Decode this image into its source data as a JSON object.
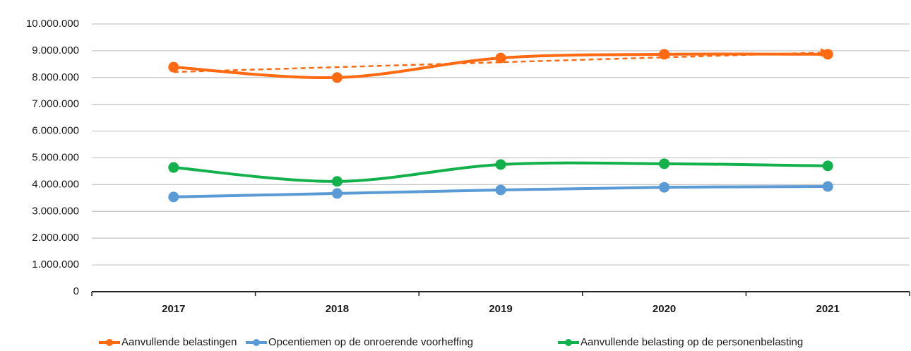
{
  "chart_data": {
    "type": "line",
    "categories": [
      "2017",
      "2018",
      "2019",
      "2020",
      "2021"
    ],
    "series": [
      {
        "name": "Aanvullende belastingen",
        "color": "#ff6a13",
        "values": [
          8390000,
          8000000,
          8730000,
          8870000,
          8870000
        ]
      },
      {
        "name": "Opcentiemen op de onroerende voorheffing",
        "color": "#5b9bd5",
        "values": [
          3540000,
          3670000,
          3800000,
          3900000,
          3930000
        ]
      },
      {
        "name": "Aanvullende belasting op de personenbelasting",
        "color": "#12b14b",
        "values": [
          4640000,
          4120000,
          4750000,
          4780000,
          4700000
        ]
      }
    ],
    "trendline_series": 0,
    "ylim": [
      0,
      10000000
    ],
    "yticks": [
      0,
      {
        "value": 1000000,
        "label": "1.000.000"
      },
      {
        "value": 2000000,
        "label": "2.000.000"
      },
      {
        "value": 3000000,
        "label": "3.000.000"
      },
      {
        "value": 4000000,
        "label": "4.000.000"
      },
      {
        "value": 5000000,
        "label": "5.000.000"
      },
      {
        "value": 6000000,
        "label": "6.000.000"
      },
      {
        "value": 7000000,
        "label": "7.000.000"
      },
      {
        "value": 8000000,
        "label": "8.000.000"
      },
      {
        "value": 9000000,
        "label": "9.000.000"
      },
      {
        "value": 10000000,
        "label": "10.000.000"
      }
    ],
    "grid": true,
    "legend": "bottom"
  }
}
